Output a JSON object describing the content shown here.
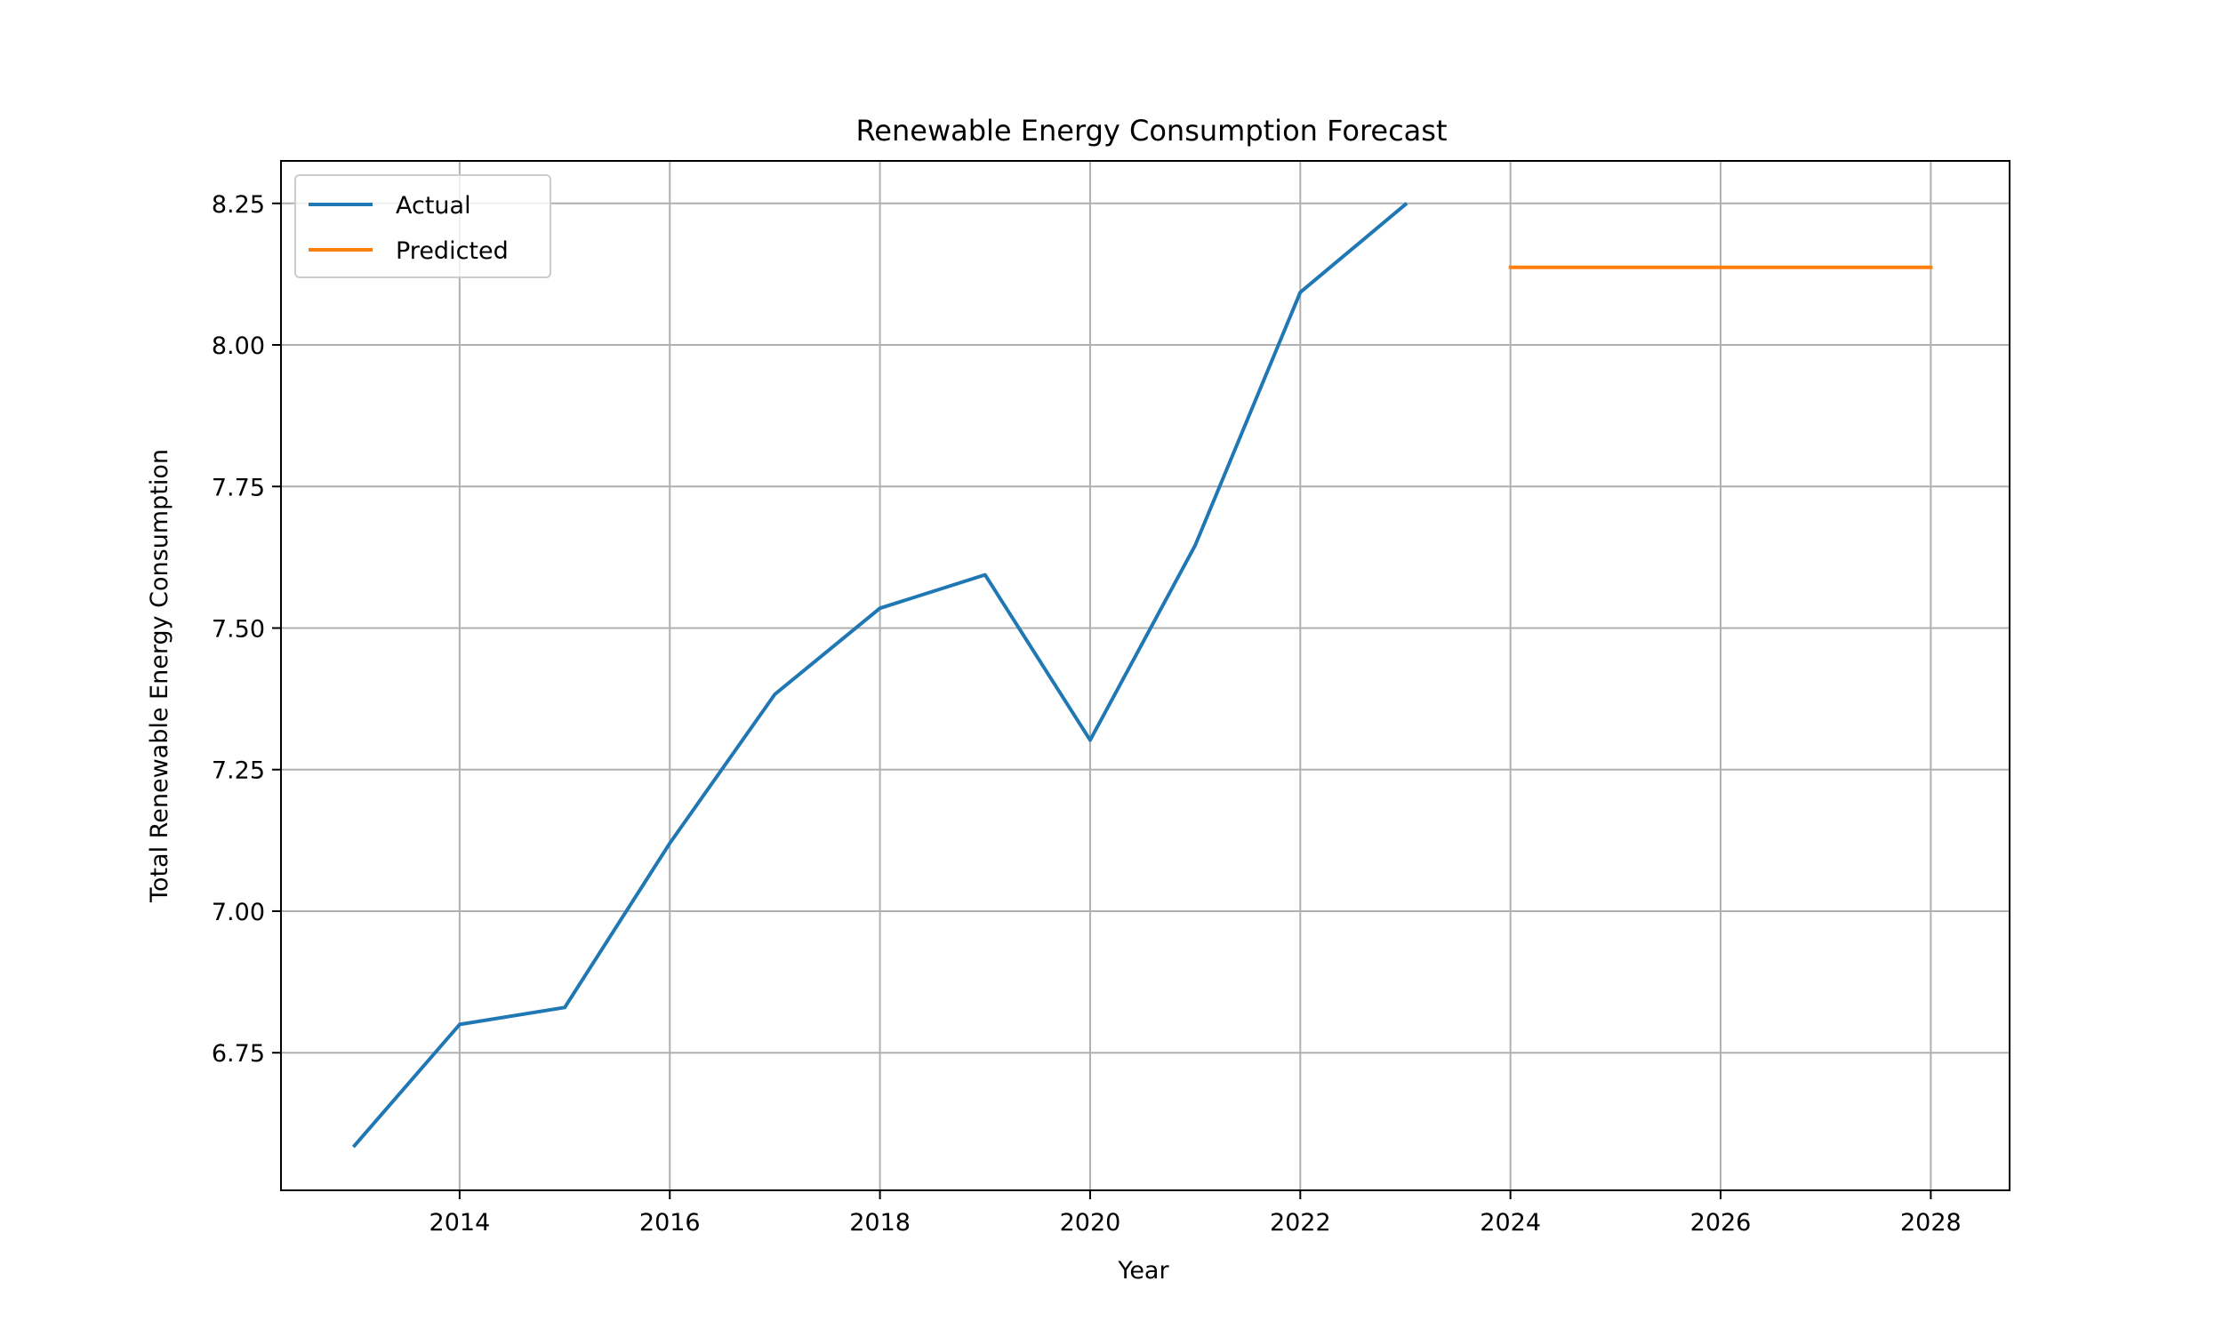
{
  "chart_data": {
    "type": "line",
    "title": "Renewable Energy Consumption Forecast",
    "xlabel": "Year",
    "ylabel": "Total Renewable Energy Consumption",
    "xlim": [
      2012.3,
      2028.75
    ],
    "ylim": [
      6.507,
      8.325
    ],
    "x_ticks": [
      2014,
      2016,
      2018,
      2020,
      2022,
      2024,
      2026,
      2028
    ],
    "x_tick_labels": [
      "2014",
      "2016",
      "2018",
      "2020",
      "2022",
      "2024",
      "2026",
      "2028"
    ],
    "y_ticks": [
      6.75,
      7.0,
      7.25,
      7.5,
      7.75,
      8.0,
      8.25
    ],
    "y_tick_labels": [
      "6.75",
      "7.00",
      "7.25",
      "7.50",
      "7.75",
      "8.00",
      "8.25"
    ],
    "grid": true,
    "legend_position": "top-left",
    "series": [
      {
        "name": "Actual",
        "color": "#1f77b4",
        "x": [
          2013,
          2014,
          2015,
          2016,
          2017,
          2018,
          2019,
          2020,
          2021,
          2022,
          2023
        ],
        "y": [
          6.586,
          6.8,
          6.83,
          7.12,
          7.383,
          7.535,
          7.594,
          7.302,
          7.646,
          8.093,
          8.248
        ]
      },
      {
        "name": "Predicted",
        "color": "#ff7f0e",
        "x": [
          2024,
          2025,
          2026,
          2027,
          2028
        ],
        "y": [
          8.137,
          8.137,
          8.137,
          8.137,
          8.137
        ]
      }
    ]
  }
}
